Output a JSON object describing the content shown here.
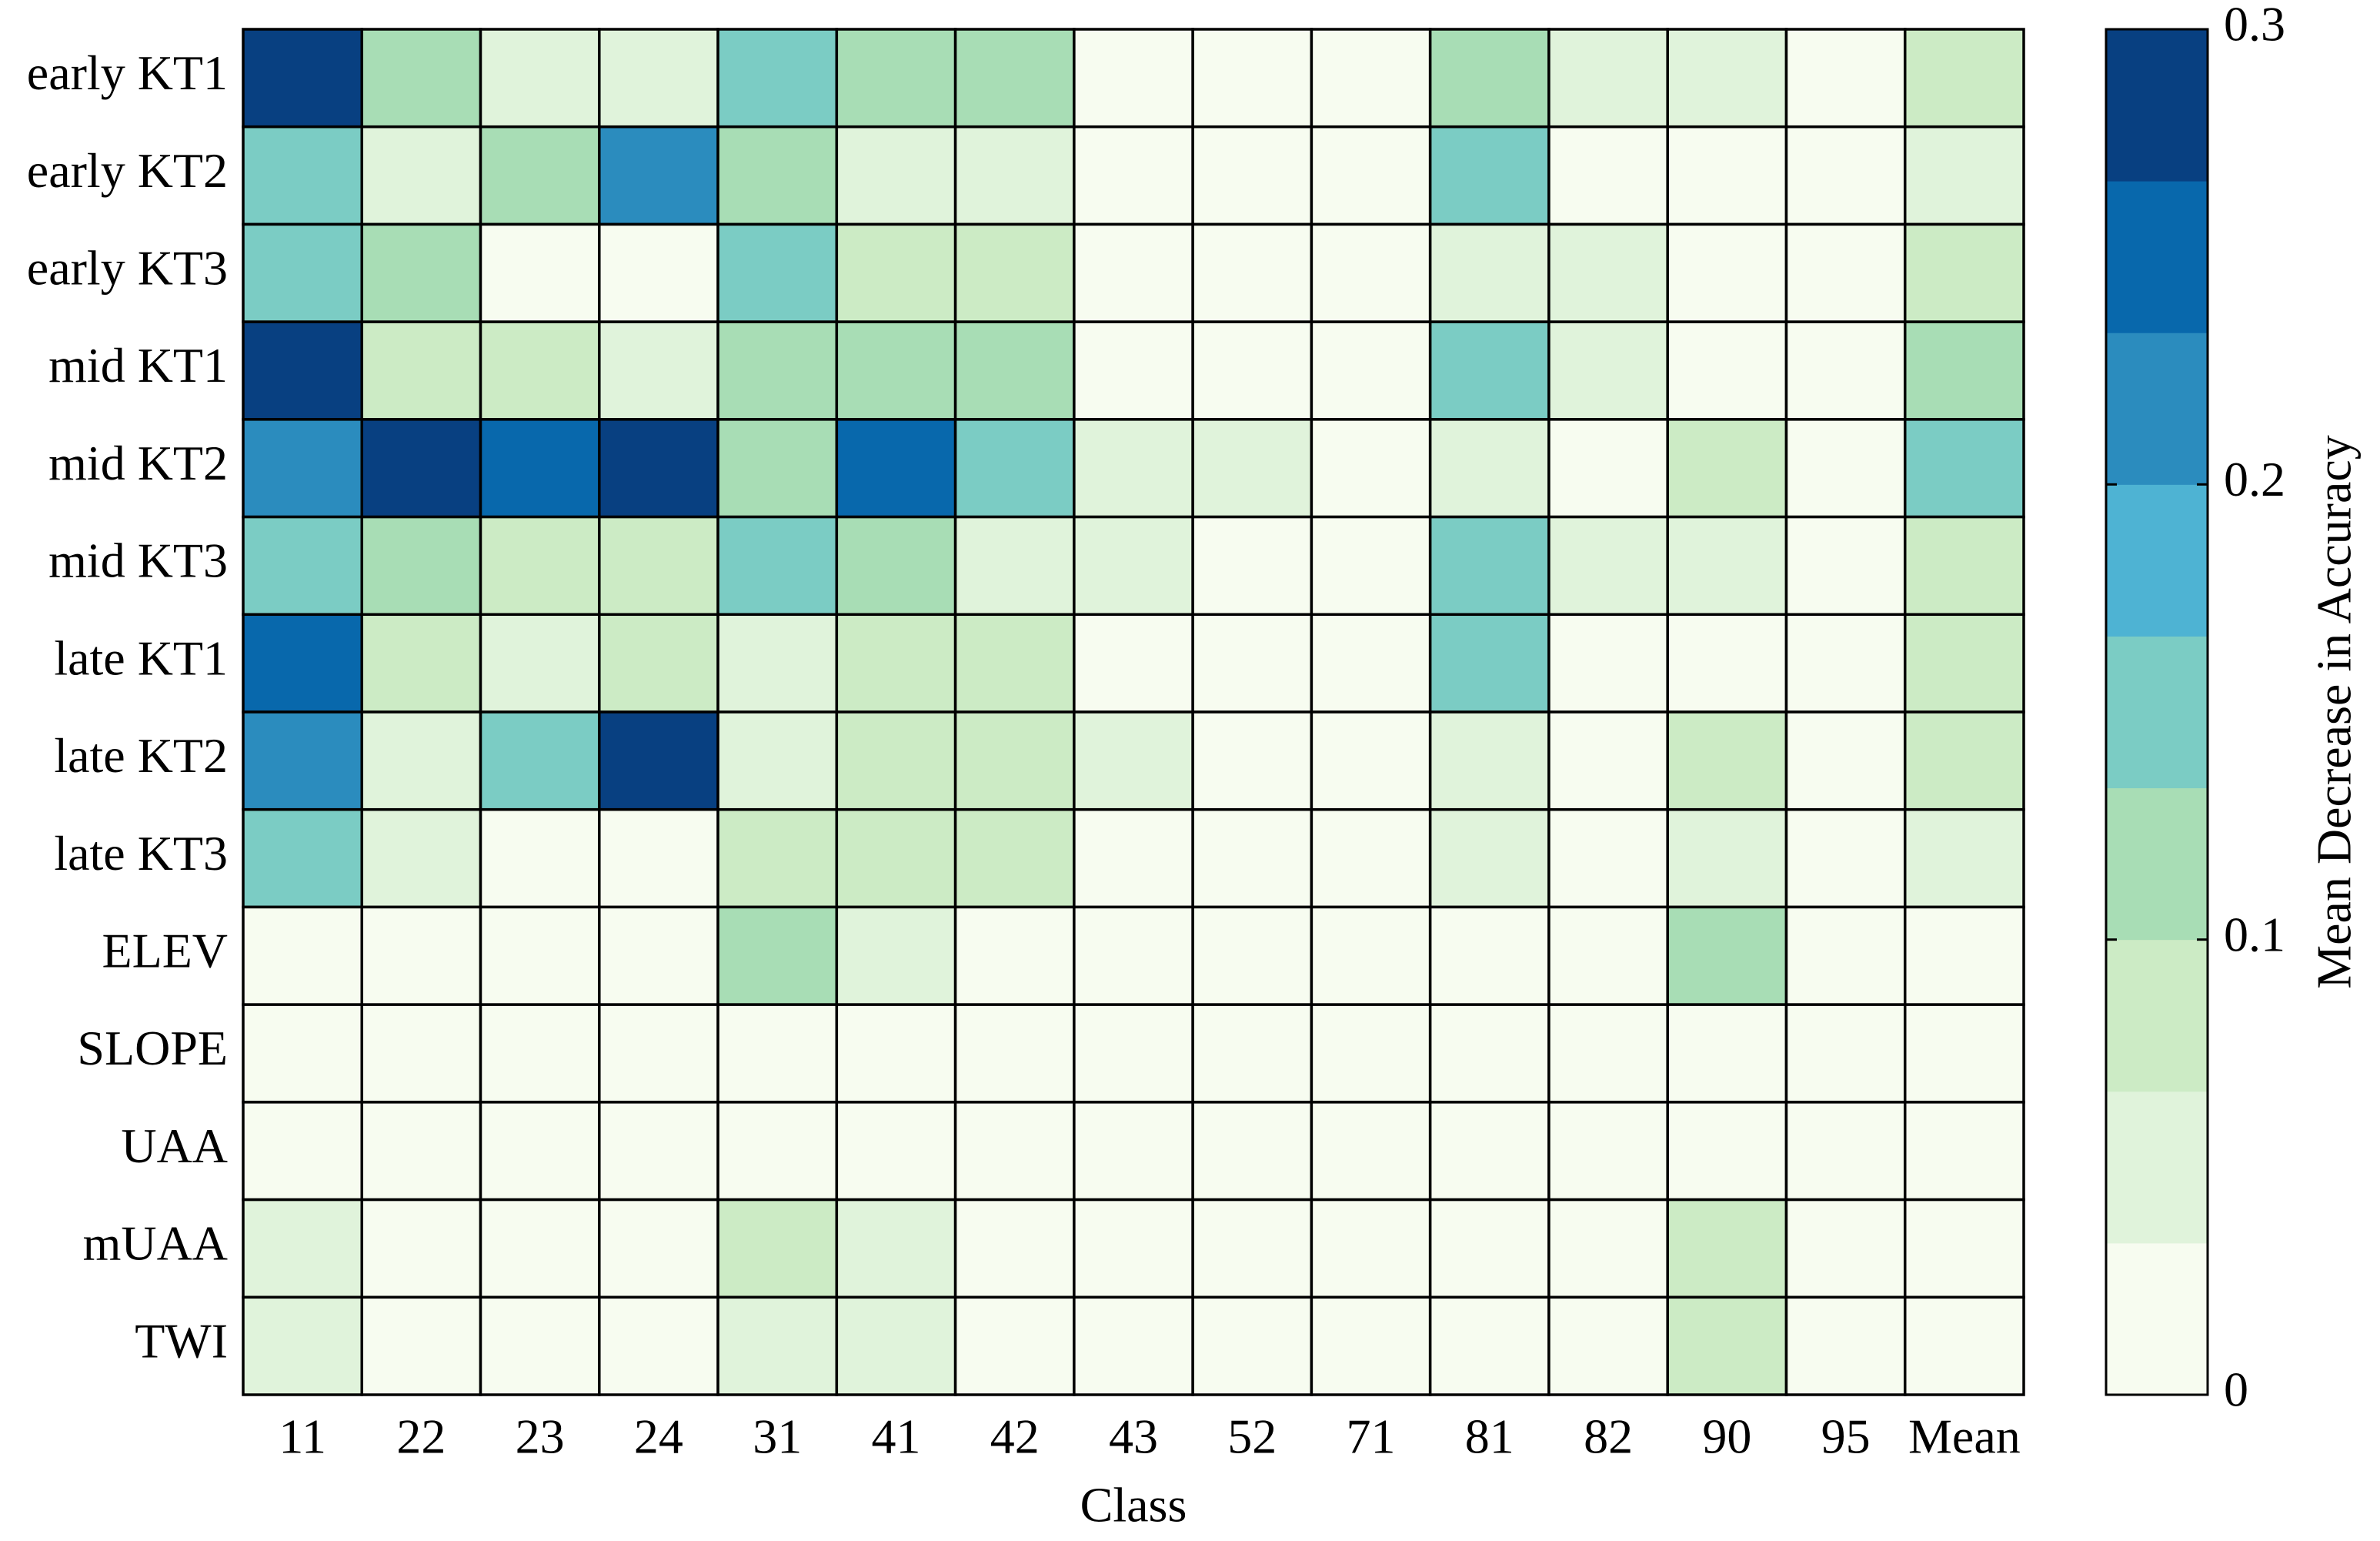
{
  "chart_data": {
    "type": "heatmap",
    "x_label": "Class",
    "colorbar_label": "Mean Decrease in Accuracy",
    "categories": [
      "11",
      "22",
      "23",
      "24",
      "31",
      "41",
      "42",
      "43",
      "52",
      "71",
      "81",
      "82",
      "90",
      "95",
      "Mean"
    ],
    "rows": [
      "early KT1",
      "early KT2",
      "early KT3",
      "mid KT1",
      "mid KT2",
      "mid KT3",
      "late KT1",
      "late KT2",
      "late KT3",
      "ELEV",
      "SLOPE",
      "UAA",
      "mUAA",
      "TWI"
    ],
    "values": [
      [
        0.29,
        0.12,
        0.05,
        0.05,
        0.15,
        0.12,
        0.12,
        0.01,
        0.01,
        0.01,
        0.12,
        0.05,
        0.05,
        0.01,
        0.08
      ],
      [
        0.15,
        0.05,
        0.12,
        0.22,
        0.12,
        0.05,
        0.05,
        0.01,
        0.01,
        0.01,
        0.15,
        0.01,
        0.01,
        0.01,
        0.05
      ],
      [
        0.15,
        0.12,
        0.01,
        0.01,
        0.15,
        0.08,
        0.08,
        0.01,
        0.01,
        0.01,
        0.05,
        0.05,
        0.01,
        0.01,
        0.08
      ],
      [
        0.29,
        0.08,
        0.08,
        0.05,
        0.12,
        0.12,
        0.12,
        0.01,
        0.01,
        0.01,
        0.15,
        0.05,
        0.01,
        0.01,
        0.12
      ],
      [
        0.22,
        0.29,
        0.25,
        0.29,
        0.12,
        0.25,
        0.15,
        0.05,
        0.05,
        0.01,
        0.05,
        0.01,
        0.08,
        0.01,
        0.15
      ],
      [
        0.15,
        0.12,
        0.08,
        0.08,
        0.15,
        0.12,
        0.05,
        0.05,
        0.01,
        0.01,
        0.15,
        0.05,
        0.05,
        0.01,
        0.08
      ],
      [
        0.25,
        0.08,
        0.05,
        0.08,
        0.05,
        0.08,
        0.08,
        0.01,
        0.01,
        0.01,
        0.15,
        0.01,
        0.01,
        0.01,
        0.08
      ],
      [
        0.22,
        0.05,
        0.15,
        0.29,
        0.05,
        0.08,
        0.08,
        0.05,
        0.01,
        0.01,
        0.05,
        0.01,
        0.08,
        0.01,
        0.08
      ],
      [
        0.15,
        0.05,
        0.01,
        0.01,
        0.08,
        0.08,
        0.08,
        0.01,
        0.01,
        0.01,
        0.05,
        0.01,
        0.05,
        0.01,
        0.05
      ],
      [
        0.01,
        0.01,
        0.01,
        0.01,
        0.12,
        0.05,
        0.01,
        0.01,
        0.01,
        0.01,
        0.01,
        0.01,
        0.12,
        0.01,
        0.01
      ],
      [
        0.01,
        0.01,
        0.01,
        0.01,
        0.01,
        0.01,
        0.01,
        0.01,
        0.01,
        0.01,
        0.01,
        0.01,
        0.01,
        0.01,
        0.01
      ],
      [
        0.01,
        0.01,
        0.01,
        0.01,
        0.01,
        0.01,
        0.01,
        0.01,
        0.01,
        0.01,
        0.01,
        0.01,
        0.01,
        0.01,
        0.01
      ],
      [
        0.05,
        0.01,
        0.01,
        0.01,
        0.08,
        0.05,
        0.01,
        0.01,
        0.01,
        0.01,
        0.01,
        0.01,
        0.08,
        0.01,
        0.01
      ],
      [
        0.05,
        0.01,
        0.01,
        0.01,
        0.05,
        0.05,
        0.01,
        0.01,
        0.01,
        0.01,
        0.01,
        0.01,
        0.08,
        0.01,
        0.01
      ]
    ],
    "colorscale": [
      "#f7fcf0",
      "#e0f3db",
      "#ccebc5",
      "#a8ddb5",
      "#7bccc4",
      "#4eb3d3",
      "#2b8cbe",
      "#0868ac",
      "#084081"
    ],
    "zlim": [
      0,
      0.3
    ],
    "zticks": [
      0,
      0.1,
      0.2,
      0.3
    ]
  }
}
